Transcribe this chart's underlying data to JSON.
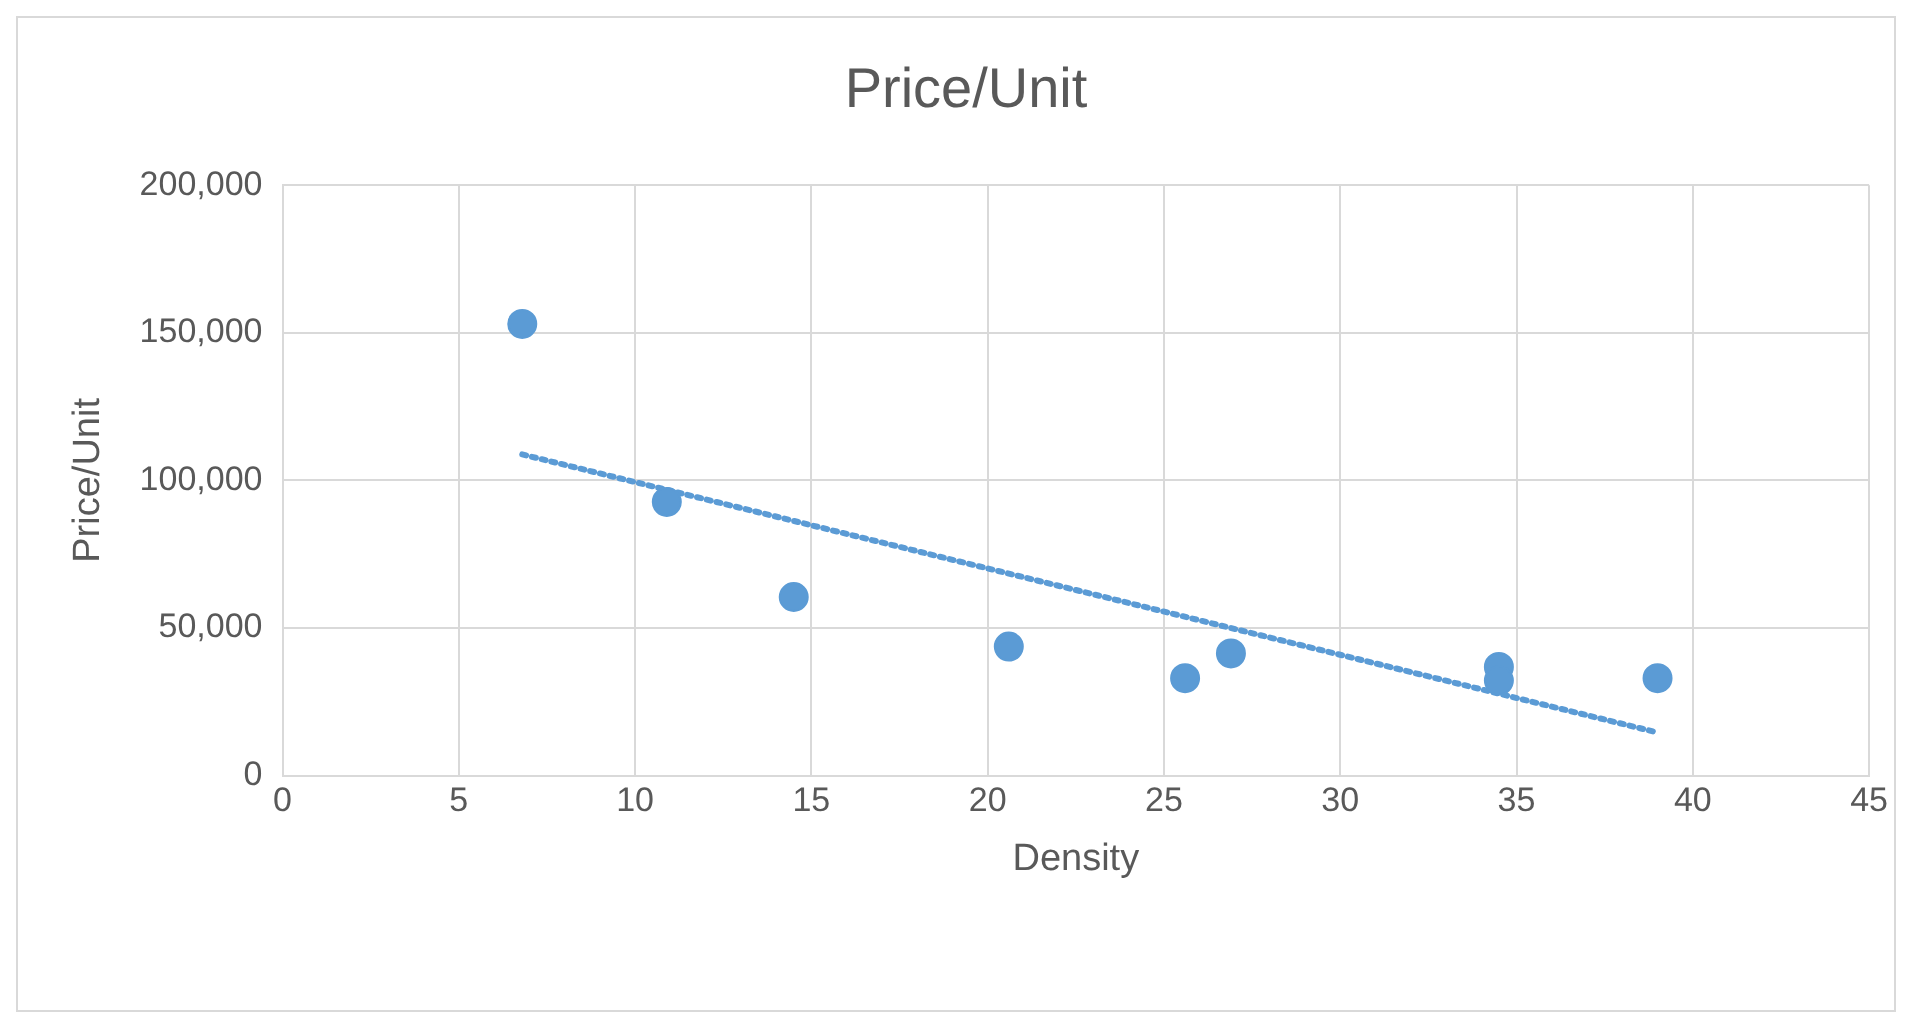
{
  "chart_data": {
    "type": "scatter",
    "title": "Price/Unit",
    "xlabel": "Density",
    "ylabel": "Price/Unit",
    "xlim": [
      0,
      45
    ],
    "xticks": [
      0,
      5,
      10,
      15,
      20,
      25,
      30,
      35,
      40,
      45
    ],
    "ylim": [
      0,
      200000
    ],
    "yticks": [
      {
        "value": 0,
        "label": "0"
      },
      {
        "value": 50000,
        "label": "50,000"
      },
      {
        "value": 100000,
        "label": "100,000"
      },
      {
        "value": 150000,
        "label": "150,000"
      },
      {
        "value": 200000,
        "label": "200,000"
      }
    ],
    "grid": true,
    "legend": false,
    "marker": "circle",
    "series": [
      {
        "type": "scatter",
        "color": "#5b9bd5",
        "x": [
          6.8,
          10.9,
          14.5,
          20.6,
          25.6,
          26.9,
          34.5,
          34.5,
          39.0
        ],
        "values": [
          153000,
          92700,
          60500,
          43700,
          33000,
          41400,
          36800,
          32200,
          33000
        ]
      },
      {
        "type": "line",
        "color": "#5b9bd5",
        "marker": "none",
        "line_style": "dotted",
        "x": [
          6.8,
          39.0
        ],
        "values": [
          108800,
          14600
        ]
      }
    ]
  }
}
